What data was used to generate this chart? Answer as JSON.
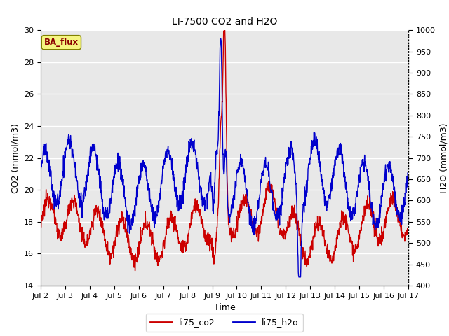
{
  "title": "LI-7500 CO2 and H2O",
  "ylabel_left": "CO2 (mmol/m3)",
  "ylabel_right": "H2O (mmol/m3)",
  "xlabel": "Time",
  "ylim_left": [
    14,
    30
  ],
  "ylim_right": [
    400,
    1000
  ],
  "yticks_left": [
    14,
    16,
    18,
    20,
    22,
    24,
    26,
    28,
    30
  ],
  "yticks_right": [
    400,
    450,
    500,
    550,
    600,
    650,
    700,
    750,
    800,
    850,
    900,
    950,
    1000
  ],
  "xtick_labels": [
    "Jul 2",
    "Jul 3",
    "Jul 4",
    "Jul 5",
    "Jul 6",
    "Jul 7",
    "Jul 8",
    "Jul 9",
    "Jul 10",
    "Jul 11",
    "Jul 12",
    "Jul 13",
    "Jul 14",
    "Jul 15",
    "Jul 16",
    "Jul 17"
  ],
  "color_co2": "#cc0000",
  "color_h2o": "#0000cc",
  "legend_label_co2": "li75_co2",
  "legend_label_h2o": "li75_h2o",
  "text_label": "BA_flux",
  "plot_bg_color": "#e8e8e8",
  "grid_color": "white",
  "linewidth": 1.0,
  "figsize": [
    6.4,
    4.8
  ],
  "dpi": 100
}
